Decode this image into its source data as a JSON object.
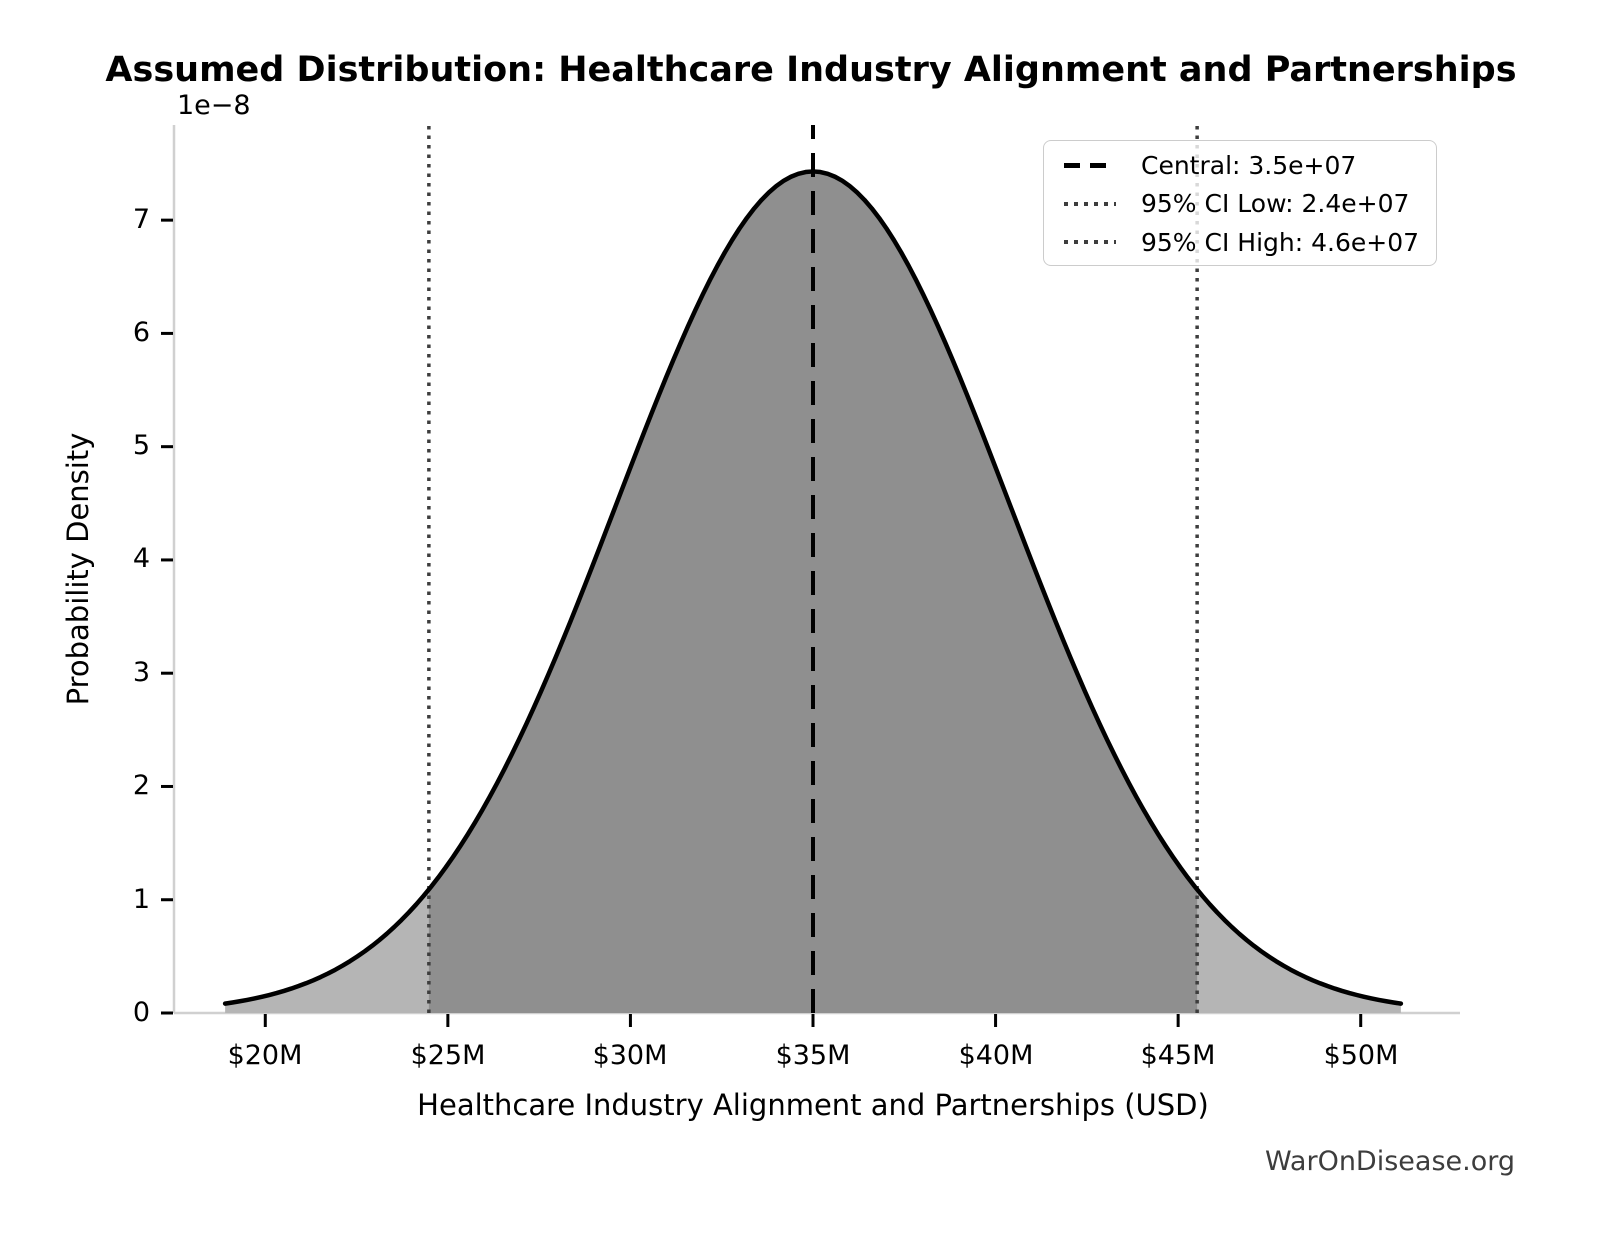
{
  "chart_data": {
    "type": "area",
    "subtype": "normal-distribution-pdf",
    "title": "Assumed Distribution: Healthcare Industry Alignment and Partnerships",
    "xlabel": "Healthcare Industry Alignment and Partnerships (USD)",
    "ylabel": "Probability Density",
    "y_offset_label": "1e−8",
    "watermark": "WarOnDisease.org",
    "grid": false,
    "xlim": [
      17500000,
      52500000
    ],
    "ylim": [
      0,
      7.84e-08
    ],
    "x_ticks": {
      "values": [
        20000000,
        25000000,
        30000000,
        35000000,
        40000000,
        45000000,
        50000000
      ],
      "labels": [
        "$20M",
        "$25M",
        "$30M",
        "$35M",
        "$40M",
        "$45M",
        "$50M"
      ]
    },
    "y_ticks": {
      "values": [
        0,
        1e-08,
        2e-08,
        3e-08,
        4e-08,
        5e-08,
        6e-08,
        7e-08
      ],
      "labels": [
        "0",
        "1",
        "2",
        "3",
        "4",
        "5",
        "6",
        "7"
      ]
    },
    "distribution": {
      "shape": "normal",
      "mean": 35000000,
      "sigma": 5370000,
      "peak_density": 7.43e-08,
      "x_range": [
        18900000,
        51100000
      ]
    },
    "vlines": {
      "central": {
        "value": 35000000,
        "style": "dashed",
        "color": "#000000"
      },
      "ci_low": {
        "value": 24480000,
        "style": "dotted",
        "color": "#3d3d3d"
      },
      "ci_high": {
        "value": 45520000,
        "style": "dotted",
        "color": "#3d3d3d"
      }
    },
    "legend": {
      "position": "upper right",
      "entries": [
        {
          "label": "Central: 3.5e+07",
          "style": "dashed",
          "color": "#000000"
        },
        {
          "label": "95% CI Low: 2.4e+07",
          "style": "dotted",
          "color": "#3d3d3d"
        },
        {
          "label": "95% CI High: 4.6e+07",
          "style": "dotted",
          "color": "#3d3d3d"
        }
      ]
    },
    "colors": {
      "curve": "#000000",
      "fill_central": "#8f8f8f",
      "fill_tail": "#b5b5b5",
      "spine": "#d0d0d0",
      "tick": "#000000",
      "text": "#000000",
      "watermark": "#3d3d3d",
      "legend_border": "#cccccc"
    }
  }
}
